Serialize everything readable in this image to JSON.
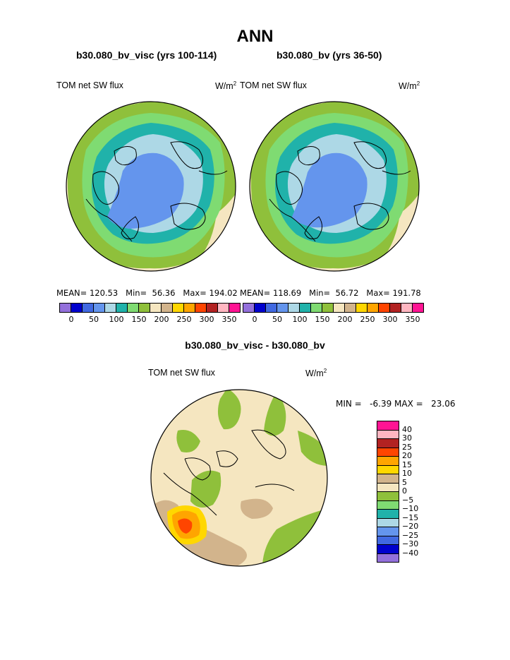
{
  "title": "ANN",
  "panel_left": {
    "case": "b30.080_bv_visc (yrs 100-114)",
    "variable": "TOM net SW flux",
    "units": "W/m",
    "units_exp": "2",
    "stats": "MEAN= 120.53   Min=  56.36   Max= 194.02"
  },
  "panel_right": {
    "case": "b30.080_bv (yrs 36-50)",
    "variable": "TOM net SW flux",
    "units": "W/m",
    "units_exp": "2",
    "stats": "MEAN= 118.69   Min=  56.72   Max= 191.78"
  },
  "panel_diff": {
    "title": "b30.080_bv_visc - b30.080_bv",
    "variable": "TOM net SW flux",
    "units": "W/m",
    "units_exp": "2",
    "minmax": "MIN =   -6.39 MAX =   23.06"
  },
  "abs_colorbar": {
    "colors": [
      "#9370db",
      "#0000cd",
      "#4169e1",
      "#6495ed",
      "#add8e6",
      "#20b2aa",
      "#7fdb72",
      "#8fc03b",
      "#f5e6c0",
      "#d2b48c",
      "#ffd700",
      "#ffa500",
      "#ff4500",
      "#b22222",
      "#ffb6c1",
      "#ff1493"
    ],
    "tick_labels": [
      "0",
      "50",
      "100",
      "150",
      "200",
      "250",
      "300",
      "350"
    ]
  },
  "diff_colorbar": {
    "colors": [
      "#ff1493",
      "#ffb6c1",
      "#b22222",
      "#ff4500",
      "#ffa500",
      "#ffd700",
      "#d2b48c",
      "#f5e6c0",
      "#8fc03b",
      "#7fdb72",
      "#20b2aa",
      "#add8e6",
      "#6495ed",
      "#4169e1",
      "#0000cd",
      "#9370db"
    ],
    "tick_labels": [
      "40",
      "30",
      "25",
      "20",
      "15",
      "10",
      "5",
      "0",
      "−5",
      "−10",
      "−15",
      "−20",
      "−25",
      "−30",
      "−40"
    ]
  }
}
